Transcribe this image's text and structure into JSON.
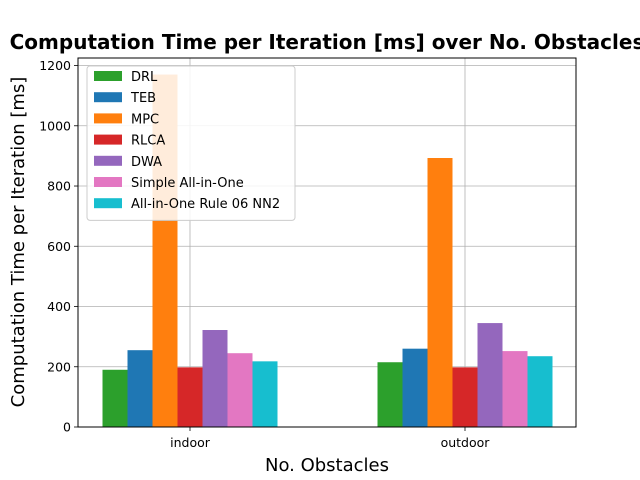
{
  "chart_data": {
    "type": "bar",
    "title": "Computation Time per Iteration [ms] over No. Obstacles",
    "xlabel": "No. Obstacles",
    "ylabel": "Computation Time per Iteration [ms]",
    "categories": [
      "indoor",
      "outdoor"
    ],
    "ylim": [
      0,
      1225
    ],
    "yticks": [
      0,
      200,
      400,
      600,
      800,
      1000,
      1200
    ],
    "grid": true,
    "legend_position": "top-left",
    "series": [
      {
        "name": "DRL",
        "color": "#2ca02c",
        "values": [
          190,
          215
        ]
      },
      {
        "name": "TEB",
        "color": "#1f77b4",
        "values": [
          255,
          260
        ]
      },
      {
        "name": "MPC",
        "color": "#ff7f0e",
        "values": [
          1170,
          893
        ]
      },
      {
        "name": "RLCA",
        "color": "#d62728",
        "values": [
          198,
          198
        ]
      },
      {
        "name": "DWA",
        "color": "#9467bd",
        "values": [
          322,
          345
        ]
      },
      {
        "name": "Simple All-in-One",
        "color": "#e377c2",
        "values": [
          245,
          252
        ]
      },
      {
        "name": "All-in-One Rule 06 NN2",
        "color": "#17becf",
        "values": [
          218,
          235
        ]
      }
    ]
  }
}
